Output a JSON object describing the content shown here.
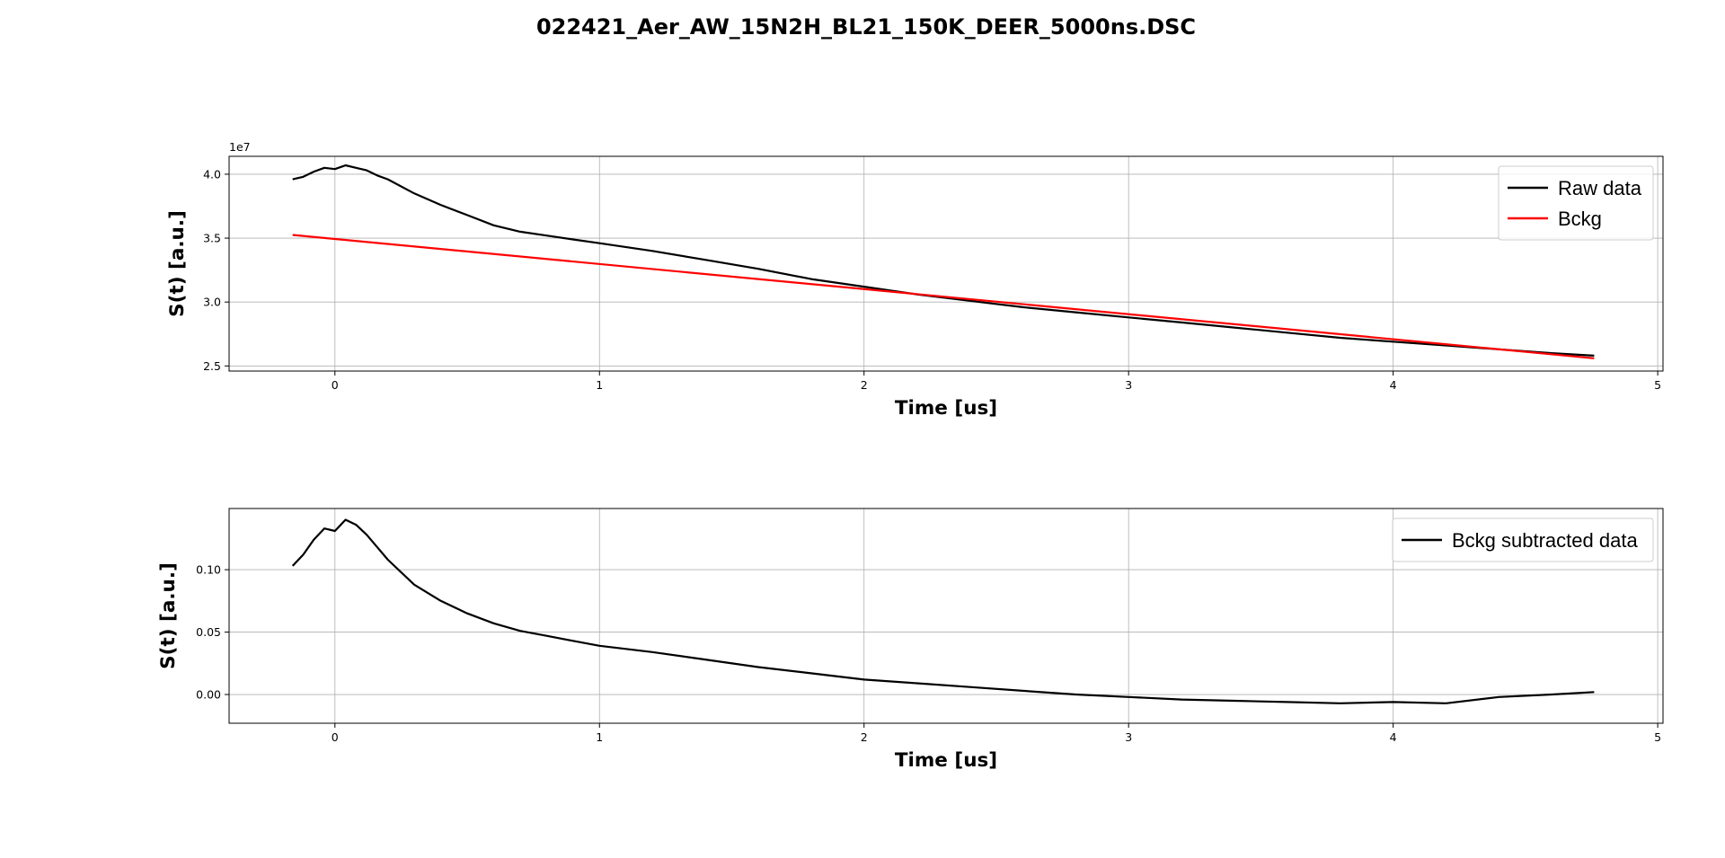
{
  "figure": {
    "title": "022421_Aer_AW_15N2H_BL21_150K_DEER_5000ns.DSC"
  },
  "colors": {
    "raw": "#000000",
    "background": "#ff0000",
    "subtracted": "#000000",
    "grid": "#b0b0b0"
  },
  "chart_data": [
    {
      "type": "line",
      "xlabel": "Time [us]",
      "ylabel": "S(t) [a.u.]",
      "y_offset_label": "1e7",
      "xlim": [
        -0.4,
        5.02
      ],
      "ylim": [
        2.46,
        4.14
      ],
      "x_ticks": [
        0,
        1,
        2,
        3,
        4,
        5
      ],
      "y_ticks": [
        2.5,
        3.0,
        3.5,
        4.0
      ],
      "y_tick_labels": [
        "2.5",
        "3.0",
        "3.5",
        "4.0"
      ],
      "grid": true,
      "legend_position": "top-right",
      "series": [
        {
          "name": "Raw data",
          "color": "#000000",
          "x": [
            -0.16,
            -0.12,
            -0.08,
            -0.04,
            0.0,
            0.04,
            0.08,
            0.12,
            0.16,
            0.2,
            0.3,
            0.4,
            0.5,
            0.6,
            0.7,
            0.8,
            0.9,
            1.0,
            1.2,
            1.4,
            1.6,
            1.8,
            2.0,
            2.2,
            2.4,
            2.6,
            2.8,
            3.0,
            3.2,
            3.4,
            3.6,
            3.8,
            4.0,
            4.2,
            4.4,
            4.6,
            4.76
          ],
          "y": [
            3.96,
            3.98,
            4.02,
            4.05,
            4.04,
            4.07,
            4.05,
            4.03,
            3.99,
            3.96,
            3.85,
            3.76,
            3.68,
            3.6,
            3.55,
            3.52,
            3.49,
            3.46,
            3.4,
            3.33,
            3.26,
            3.18,
            3.12,
            3.06,
            3.01,
            2.96,
            2.92,
            2.88,
            2.84,
            2.8,
            2.76,
            2.72,
            2.69,
            2.66,
            2.63,
            2.6,
            2.58
          ]
        },
        {
          "name": "Bckg",
          "color": "#ff0000",
          "x": [
            -0.16,
            4.76
          ],
          "y": [
            3.525,
            2.56
          ]
        }
      ]
    },
    {
      "type": "line",
      "xlabel": "Time [us]",
      "ylabel": "S(t) [a.u.]",
      "xlim": [
        -0.4,
        5.02
      ],
      "ylim": [
        -0.023,
        0.149
      ],
      "x_ticks": [
        0,
        1,
        2,
        3,
        4,
        5
      ],
      "y_ticks": [
        0.0,
        0.05,
        0.1
      ],
      "y_tick_labels": [
        "0.00",
        "0.05",
        "0.10"
      ],
      "grid": true,
      "legend_position": "top-right",
      "series": [
        {
          "name": "Bckg subtracted data",
          "color": "#000000",
          "x": [
            -0.16,
            -0.12,
            -0.08,
            -0.04,
            0.0,
            0.04,
            0.08,
            0.12,
            0.16,
            0.2,
            0.3,
            0.4,
            0.5,
            0.6,
            0.7,
            0.8,
            0.9,
            1.0,
            1.2,
            1.4,
            1.6,
            1.8,
            2.0,
            2.2,
            2.4,
            2.6,
            2.8,
            3.0,
            3.2,
            3.4,
            3.6,
            3.8,
            4.0,
            4.2,
            4.4,
            4.6,
            4.76
          ],
          "y": [
            0.103,
            0.112,
            0.124,
            0.133,
            0.131,
            0.14,
            0.136,
            0.128,
            0.118,
            0.108,
            0.088,
            0.075,
            0.065,
            0.057,
            0.051,
            0.047,
            0.043,
            0.039,
            0.034,
            0.028,
            0.022,
            0.017,
            0.012,
            0.009,
            0.006,
            0.003,
            0.0,
            -0.002,
            -0.004,
            -0.005,
            -0.006,
            -0.007,
            -0.006,
            -0.007,
            -0.002,
            0.0,
            0.002
          ]
        }
      ]
    }
  ]
}
